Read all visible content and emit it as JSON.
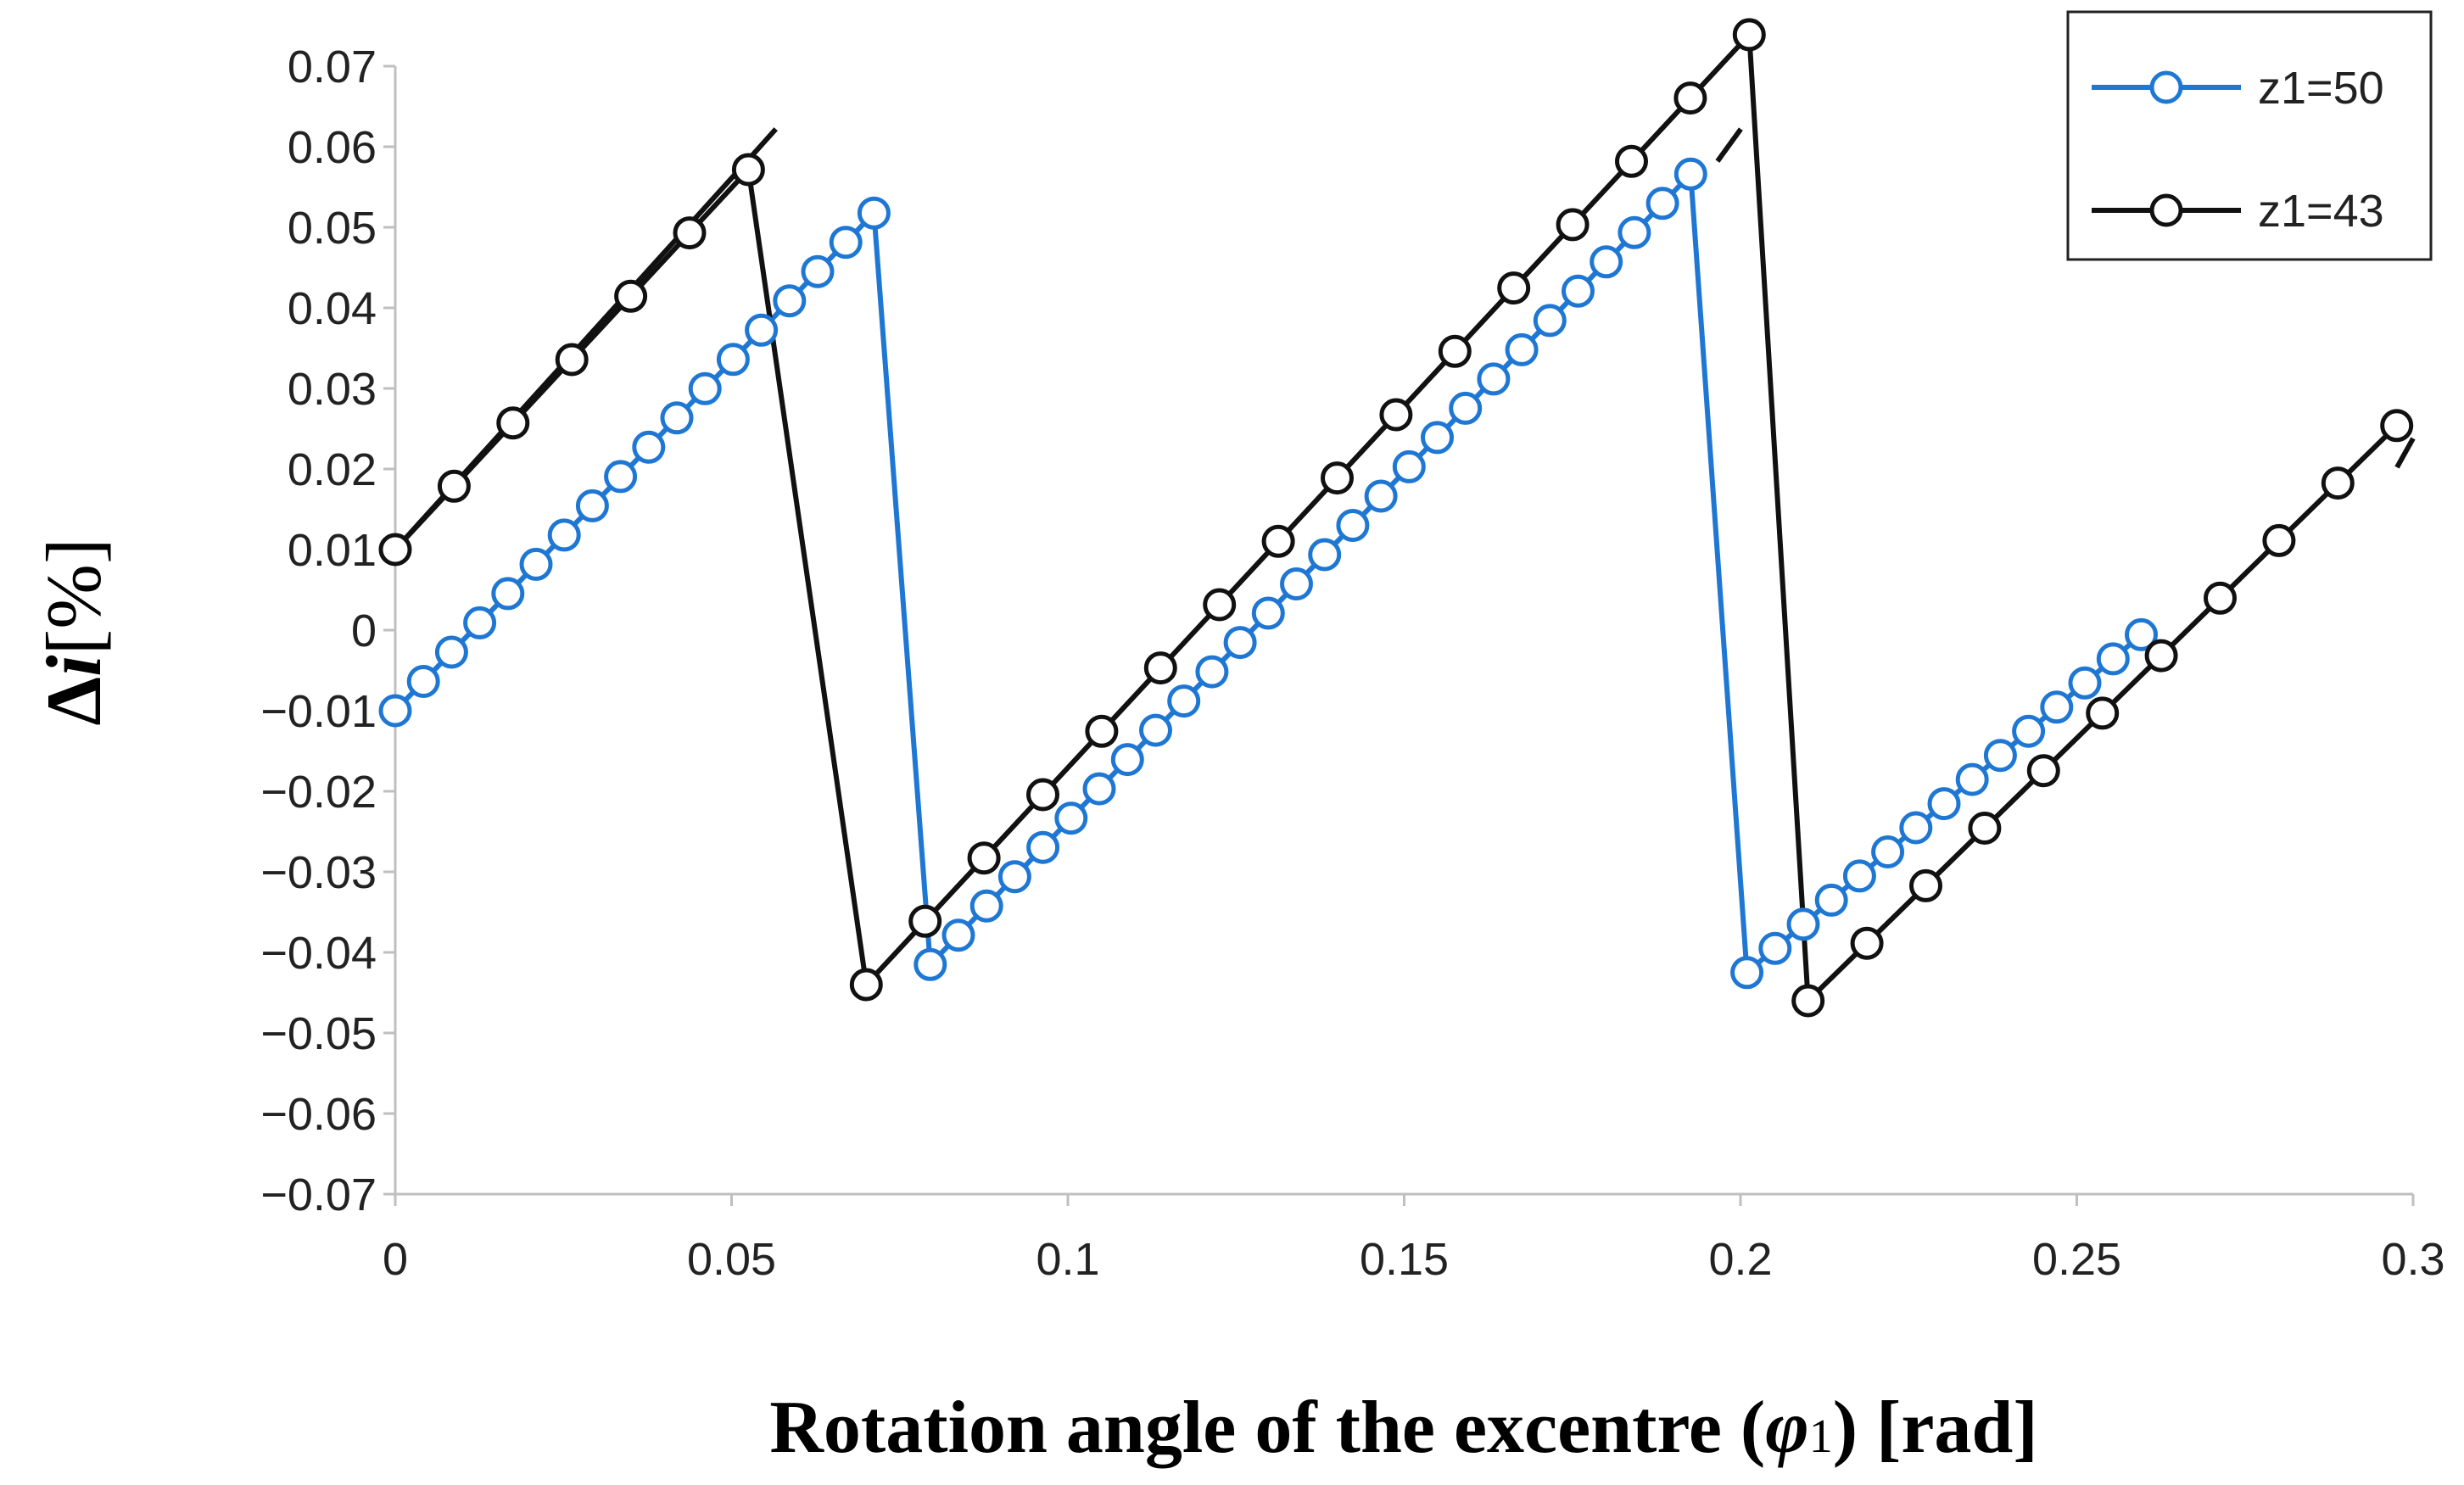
{
  "chart_data": {
    "type": "line",
    "title": "",
    "xlabel": {
      "main": "Rotation angle of the excentre (",
      "symbol": "φ",
      "subscript": "1",
      "tail": ") [rad]"
    },
    "ylabel": {
      "symbol": "Δ",
      "italic": "i",
      "tail": "[%]"
    },
    "xlim": [
      0,
      0.3
    ],
    "ylim": [
      -0.07,
      0.07
    ],
    "x_ticks": [
      "0",
      "0.05",
      "0.1",
      "0.15",
      "0.2",
      "0.25",
      "0.3"
    ],
    "y_ticks": [
      "0.07",
      "0.06",
      "0.05",
      "0.04",
      "0.03",
      "0.02",
      "0.01",
      "0",
      "−0.01",
      "−0.02",
      "−0.03",
      "−0.04",
      "−0.05",
      "−0.06",
      "−0.07"
    ],
    "grid": false,
    "legend_position": "top-right",
    "series": [
      {
        "name": "z1=50",
        "color": "#1f77d4",
        "marker": "open-circle",
        "segments": [
          {
            "x0": 0.0,
            "y0": -0.01,
            "dx": 0.004187,
            "slope": 0.8678,
            "n": 18
          },
          {
            "x0": 0.07955,
            "y0": -0.0415,
            "dx": 0.004187,
            "slope": 0.8678,
            "n": 28
          },
          {
            "x0": 0.20096,
            "y0": -0.0425,
            "dx": 0.004187,
            "slope": 0.7153,
            "n": 15
          }
        ]
      },
      {
        "name": "z1=43",
        "color": "#111111",
        "marker": "open-circle",
        "segments": [
          {
            "x0": 0.0,
            "y0": 0.01,
            "dx": 0.008752,
            "slope": 0.8981,
            "n": 7
          },
          {
            "x0": 0.07002,
            "y0": -0.044,
            "dx": 0.008752,
            "slope": 0.8981,
            "n": 16
          },
          {
            "x0": 0.21005,
            "y0": -0.046,
            "dx": 0.008752,
            "slope": 0.8157,
            "n": 11
          }
        ]
      }
    ],
    "connectors": [
      {
        "series": "z1=43",
        "points": [
          [
            0.0,
            0.01
          ],
          [
            0.0525,
            0.0584
          ],
          [
            0.05658,
            0.0622
          ]
        ]
      },
      {
        "series": "z1=43",
        "points": [
          [
            0.19658,
            0.0582
          ],
          [
            0.20005,
            0.0622
          ]
        ]
      },
      {
        "series": "z1=43",
        "points": [
          [
            0.2976,
            0.0202
          ],
          [
            0.3,
            0.0238
          ]
        ]
      }
    ]
  }
}
